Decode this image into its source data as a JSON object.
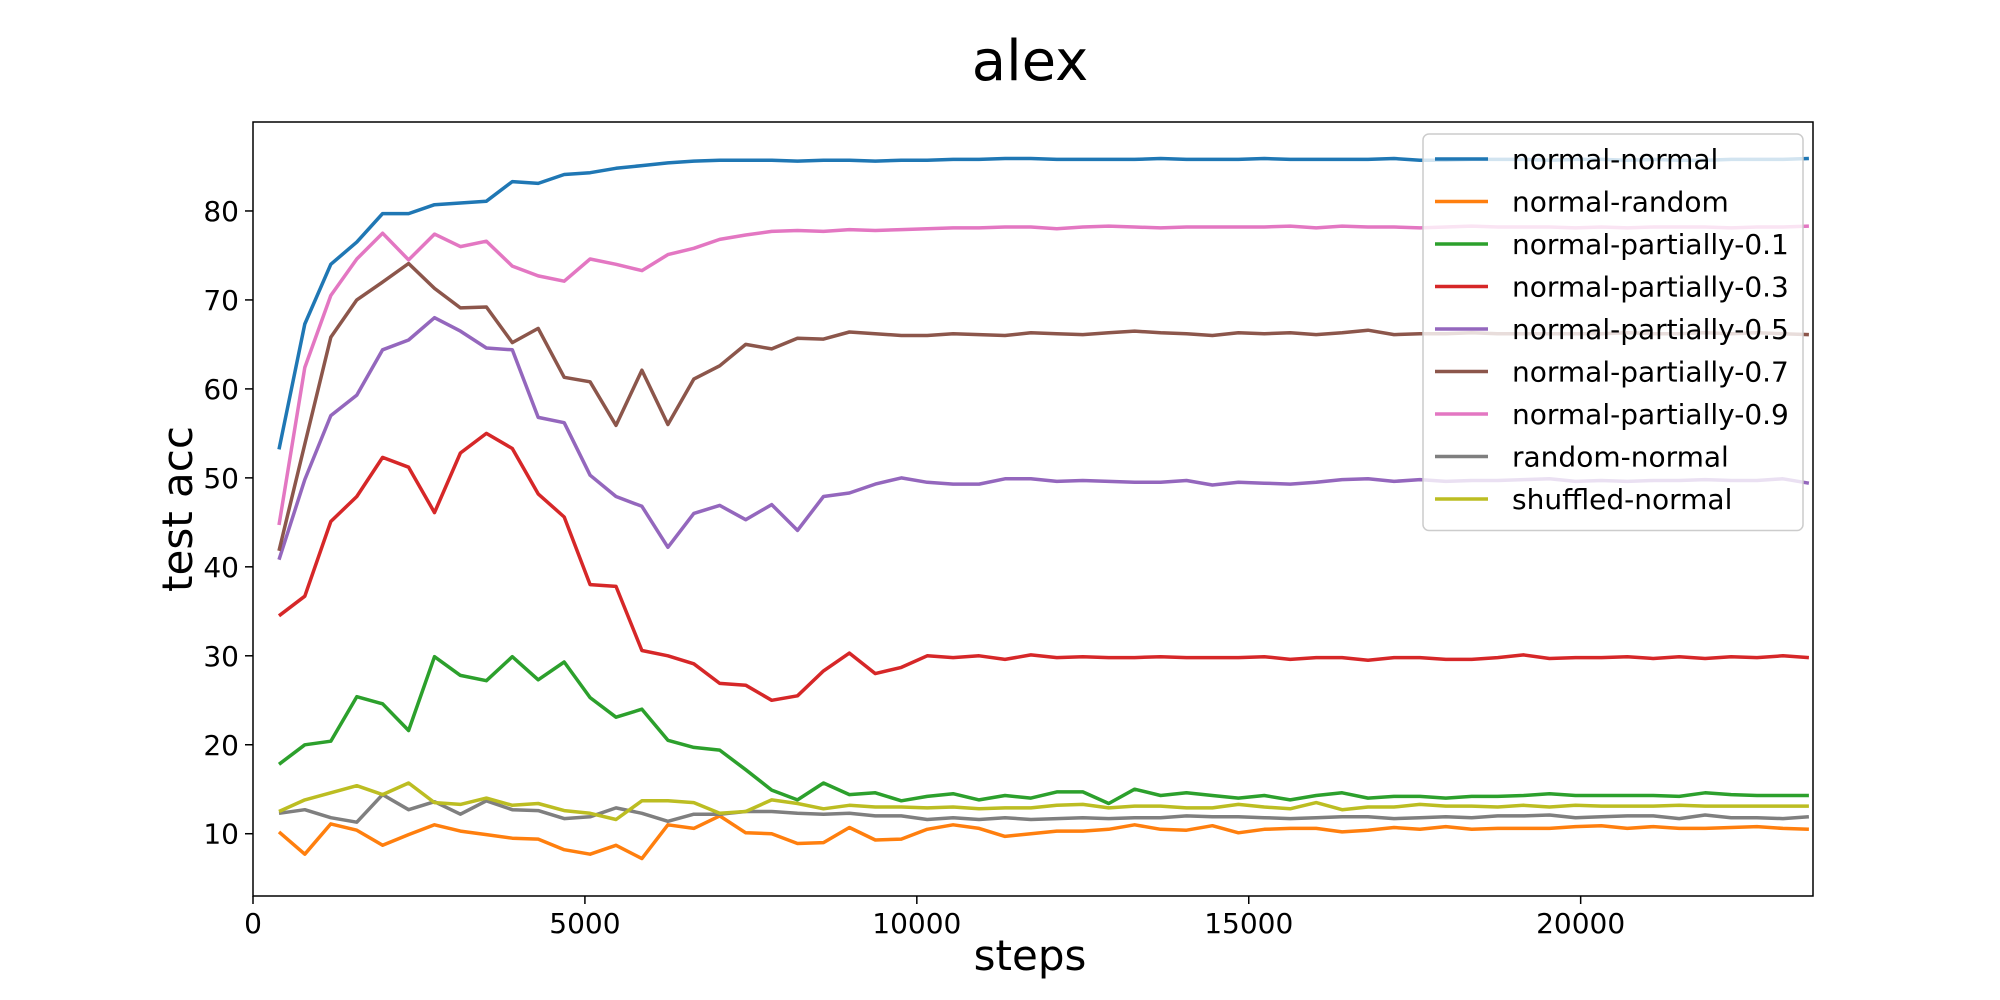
{
  "chart_data": {
    "type": "line",
    "title": "alex",
    "xlabel": "steps",
    "ylabel": "test acc",
    "xlim": [
      0,
      23500
    ],
    "ylim": [
      3,
      90
    ],
    "xticks": [
      0,
      5000,
      10000,
      15000,
      20000
    ],
    "yticks": [
      10,
      20,
      30,
      40,
      50,
      60,
      70,
      80
    ],
    "grid": false,
    "legend_position": "upper right",
    "x": [
      391,
      781,
      1172,
      1563,
      1953,
      2344,
      2734,
      3125,
      3516,
      3906,
      4297,
      4688,
      5078,
      5469,
      5859,
      6250,
      6641,
      7031,
      7422,
      7813,
      8203,
      8594,
      8984,
      9375,
      9766,
      10156,
      10547,
      10938,
      11328,
      11719,
      12109,
      12500,
      12891,
      13281,
      13672,
      14063,
      14453,
      14844,
      15234,
      15625,
      16016,
      16406,
      16797,
      17188,
      17578,
      17969,
      18359,
      18750,
      19141,
      19531,
      19922,
      20313,
      20703,
      21094,
      21484,
      21875,
      22266,
      22656,
      23047,
      23438
    ],
    "series": [
      {
        "name": "normal-normal",
        "color": "#1f77b4",
        "values": [
          53.2,
          67.3,
          74.0,
          76.5,
          79.7,
          79.7,
          80.7,
          80.9,
          81.1,
          83.3,
          83.1,
          84.1,
          84.3,
          84.8,
          85.1,
          85.4,
          85.6,
          85.7,
          85.7,
          85.7,
          85.6,
          85.7,
          85.7,
          85.6,
          85.7,
          85.7,
          85.8,
          85.8,
          85.9,
          85.9,
          85.8,
          85.8,
          85.8,
          85.8,
          85.9,
          85.8,
          85.8,
          85.8,
          85.9,
          85.8,
          85.8,
          85.8,
          85.8,
          85.9,
          85.7,
          85.7,
          85.8,
          85.8,
          85.8,
          85.7,
          85.8,
          85.8,
          85.7,
          85.8,
          85.7,
          85.7,
          85.8,
          85.8,
          85.8,
          85.9
        ]
      },
      {
        "name": "normal-random",
        "color": "#ff7f0e",
        "values": [
          10.2,
          7.7,
          11.1,
          10.4,
          8.7,
          9.9,
          11.0,
          10.3,
          9.9,
          9.5,
          9.4,
          8.2,
          7.7,
          8.7,
          7.2,
          11.0,
          10.6,
          12.0,
          10.1,
          10.0,
          8.9,
          9.0,
          10.7,
          9.3,
          9.4,
          10.5,
          11.0,
          10.6,
          9.7,
          10.0,
          10.3,
          10.3,
          10.5,
          11.0,
          10.5,
          10.4,
          10.9,
          10.1,
          10.5,
          10.6,
          10.6,
          10.2,
          10.4,
          10.7,
          10.5,
          10.8,
          10.5,
          10.6,
          10.6,
          10.6,
          10.8,
          10.9,
          10.6,
          10.8,
          10.6,
          10.6,
          10.7,
          10.8,
          10.6,
          10.5
        ]
      },
      {
        "name": "normal-partially-0.1",
        "color": "#2ca02c",
        "values": [
          17.8,
          20.0,
          20.4,
          25.4,
          24.6,
          21.6,
          29.9,
          27.8,
          27.2,
          29.9,
          27.3,
          29.3,
          25.3,
          23.1,
          24.0,
          20.5,
          19.7,
          19.4,
          17.2,
          14.9,
          13.8,
          15.7,
          14.4,
          14.6,
          13.7,
          14.2,
          14.5,
          13.8,
          14.3,
          14.0,
          14.7,
          14.7,
          13.4,
          15.0,
          14.3,
          14.6,
          14.3,
          14.0,
          14.3,
          13.8,
          14.3,
          14.6,
          14.0,
          14.2,
          14.2,
          14.0,
          14.2,
          14.2,
          14.3,
          14.5,
          14.3,
          14.3,
          14.3,
          14.3,
          14.2,
          14.6,
          14.4,
          14.3,
          14.3,
          14.3
        ]
      },
      {
        "name": "normal-partially-0.3",
        "color": "#d62728",
        "values": [
          34.5,
          36.7,
          45.1,
          47.9,
          52.3,
          51.2,
          46.1,
          52.8,
          55.0,
          53.3,
          48.2,
          45.6,
          38.0,
          37.8,
          30.6,
          30.0,
          29.1,
          26.9,
          26.7,
          25.0,
          25.5,
          28.3,
          30.3,
          28.0,
          28.7,
          30.0,
          29.8,
          30.0,
          29.6,
          30.1,
          29.8,
          29.9,
          29.8,
          29.8,
          29.9,
          29.8,
          29.8,
          29.8,
          29.9,
          29.6,
          29.8,
          29.8,
          29.5,
          29.8,
          29.8,
          29.6,
          29.6,
          29.8,
          30.1,
          29.7,
          29.8,
          29.8,
          29.9,
          29.7,
          29.9,
          29.7,
          29.9,
          29.8,
          30.0,
          29.8
        ]
      },
      {
        "name": "normal-partially-0.5",
        "color": "#9467bd",
        "values": [
          40.8,
          49.8,
          57.0,
          59.3,
          64.4,
          65.5,
          68.0,
          66.5,
          64.6,
          64.4,
          56.8,
          56.2,
          50.3,
          47.9,
          46.8,
          42.2,
          46.0,
          46.9,
          45.3,
          47.0,
          44.1,
          47.9,
          48.3,
          49.3,
          50.0,
          49.5,
          49.3,
          49.3,
          49.9,
          49.9,
          49.6,
          49.7,
          49.6,
          49.5,
          49.5,
          49.7,
          49.2,
          49.5,
          49.4,
          49.3,
          49.5,
          49.8,
          49.9,
          49.6,
          49.8,
          49.6,
          49.7,
          49.7,
          49.8,
          49.9,
          49.6,
          49.7,
          49.6,
          49.7,
          49.7,
          49.8,
          49.7,
          49.7,
          49.9,
          49.4
        ]
      },
      {
        "name": "normal-partially-0.7",
        "color": "#8c564b",
        "values": [
          41.8,
          53.8,
          65.8,
          70.0,
          72.0,
          74.1,
          71.3,
          69.1,
          69.2,
          65.2,
          66.8,
          61.3,
          60.8,
          55.9,
          62.1,
          56.0,
          61.1,
          62.6,
          65.0,
          64.5,
          65.7,
          65.6,
          66.4,
          66.2,
          66.0,
          66.0,
          66.2,
          66.1,
          66.0,
          66.3,
          66.2,
          66.1,
          66.3,
          66.5,
          66.3,
          66.2,
          66.0,
          66.3,
          66.2,
          66.3,
          66.1,
          66.3,
          66.6,
          66.1,
          66.2,
          66.2,
          66.3,
          66.2,
          66.2,
          66.2,
          66.2,
          66.2,
          66.3,
          66.2,
          66.2,
          66.3,
          66.2,
          66.3,
          66.2,
          66.1
        ]
      },
      {
        "name": "normal-partially-0.9",
        "color": "#e377c2",
        "values": [
          44.7,
          62.4,
          70.5,
          74.6,
          77.5,
          74.5,
          77.4,
          76.0,
          76.6,
          73.8,
          72.7,
          72.1,
          74.6,
          74.0,
          73.3,
          75.1,
          75.8,
          76.8,
          77.3,
          77.7,
          77.8,
          77.7,
          77.9,
          77.8,
          77.9,
          78.0,
          78.1,
          78.1,
          78.2,
          78.2,
          78.0,
          78.2,
          78.3,
          78.2,
          78.1,
          78.2,
          78.2,
          78.2,
          78.2,
          78.3,
          78.1,
          78.3,
          78.2,
          78.2,
          78.1,
          78.2,
          78.3,
          78.2,
          78.2,
          78.2,
          78.1,
          78.2,
          78.1,
          78.2,
          78.2,
          78.2,
          78.1,
          78.2,
          78.2,
          78.3
        ]
      },
      {
        "name": "random-normal",
        "color": "#7f7f7f",
        "values": [
          12.3,
          12.7,
          11.8,
          11.3,
          14.4,
          12.7,
          13.6,
          12.2,
          13.7,
          12.7,
          12.6,
          11.7,
          11.9,
          12.9,
          12.3,
          11.4,
          12.2,
          12.2,
          12.5,
          12.5,
          12.3,
          12.2,
          12.3,
          12.0,
          12.0,
          11.6,
          11.8,
          11.6,
          11.8,
          11.6,
          11.7,
          11.8,
          11.7,
          11.8,
          11.8,
          12.0,
          11.9,
          11.9,
          11.8,
          11.7,
          11.8,
          11.9,
          11.9,
          11.7,
          11.8,
          11.9,
          11.8,
          12.0,
          12.0,
          12.1,
          11.8,
          11.9,
          12.0,
          12.0,
          11.7,
          12.1,
          11.8,
          11.8,
          11.7,
          11.9
        ]
      },
      {
        "name": "shuffled-normal",
        "color": "#bcbd22",
        "values": [
          12.5,
          13.8,
          14.6,
          15.4,
          14.4,
          15.7,
          13.5,
          13.3,
          14.0,
          13.2,
          13.4,
          12.6,
          12.3,
          11.6,
          13.7,
          13.7,
          13.5,
          12.3,
          12.5,
          13.8,
          13.4,
          12.8,
          13.2,
          13.0,
          13.0,
          12.9,
          13.0,
          12.8,
          12.9,
          12.9,
          13.2,
          13.3,
          12.9,
          13.1,
          13.1,
          12.9,
          12.9,
          13.3,
          13.0,
          12.8,
          13.5,
          12.7,
          13.0,
          13.0,
          13.3,
          13.1,
          13.1,
          13.0,
          13.2,
          13.0,
          13.2,
          13.1,
          13.1,
          13.1,
          13.2,
          13.1,
          13.1,
          13.1,
          13.1,
          13.1
        ]
      }
    ]
  }
}
